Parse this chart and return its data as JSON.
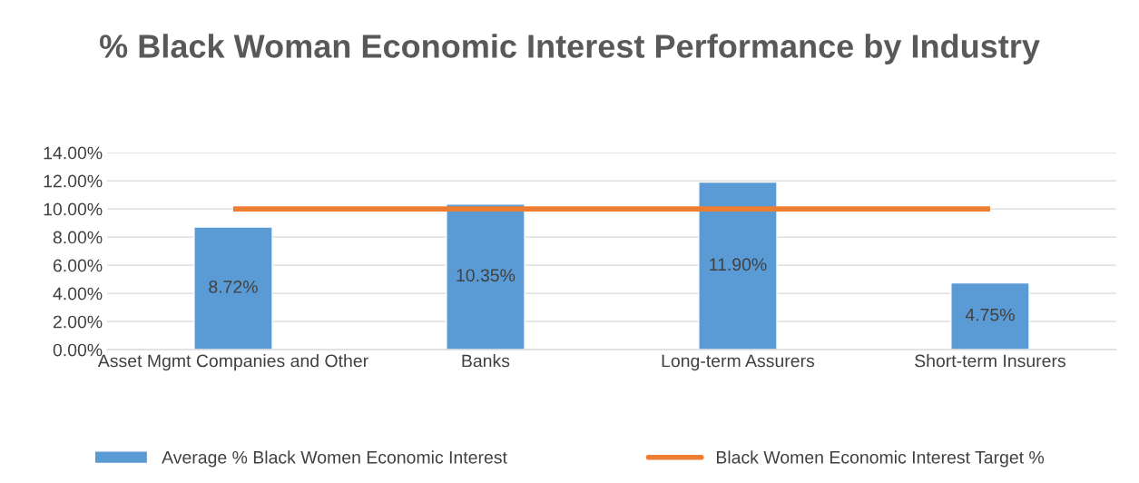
{
  "chart_data": {
    "type": "bar",
    "title": "% Black Woman Economic Interest Performance by Industry",
    "categories": [
      "Asset Mgmt Companies and Other",
      "Banks",
      "Long-term Assurers",
      "Short-term Insurers"
    ],
    "series": [
      {
        "name": "Average % Black Women Economic Interest",
        "color": "#5b9bd5",
        "values": [
          8.72,
          10.35,
          11.9,
          4.75
        ],
        "value_labels": [
          "8.72%",
          "10.35%",
          "11.90%",
          "4.75%"
        ]
      },
      {
        "name": "Black Women Economic Interest Target %",
        "type": "line",
        "color": "#ed7d31",
        "values": [
          10,
          10,
          10,
          10
        ]
      }
    ],
    "ylim": [
      0,
      14
    ],
    "yticks": [
      {
        "value": 0,
        "label": "0.00%"
      },
      {
        "value": 2,
        "label": "2.00%"
      },
      {
        "value": 4,
        "label": "4.00%"
      },
      {
        "value": 6,
        "label": "6.00%"
      },
      {
        "value": 8,
        "label": "8.00%"
      },
      {
        "value": 10,
        "label": "10.00%"
      },
      {
        "value": 12,
        "label": "12.00%"
      },
      {
        "value": 14,
        "label": "14.00%"
      }
    ],
    "grid": "y",
    "legend": "bottom"
  }
}
